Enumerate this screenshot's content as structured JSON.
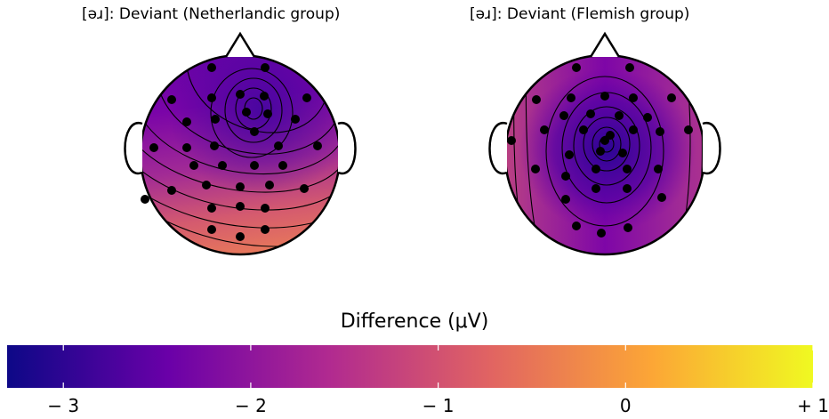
{
  "chart_data": [
    {
      "type": "heatmap",
      "title": "[əɹ]: Deviant (Netherlandic group)",
      "min_location": "frontocentral",
      "electrodes_count": 32
    },
    {
      "type": "heatmap",
      "title": "[əɹ]: Deviant (Flemish group)",
      "min_location": "central",
      "electrodes_count": 32
    }
  ],
  "colorbar": {
    "label": "Difference (μV)",
    "range": [
      -3.3,
      1.0
    ],
    "ticks": [
      {
        "value": -3,
        "label": "− 3"
      },
      {
        "value": -2,
        "label": "− 2"
      },
      {
        "value": -1,
        "label": "− 1"
      },
      {
        "value": 0,
        "label": "0"
      },
      {
        "value": 1,
        "label": "+ 1"
      }
    ],
    "colormap": "plasma",
    "colors": [
      "#0d0887",
      "#6a00a8",
      "#b12a90",
      "#e16462",
      "#fca636",
      "#f0f921"
    ]
  }
}
